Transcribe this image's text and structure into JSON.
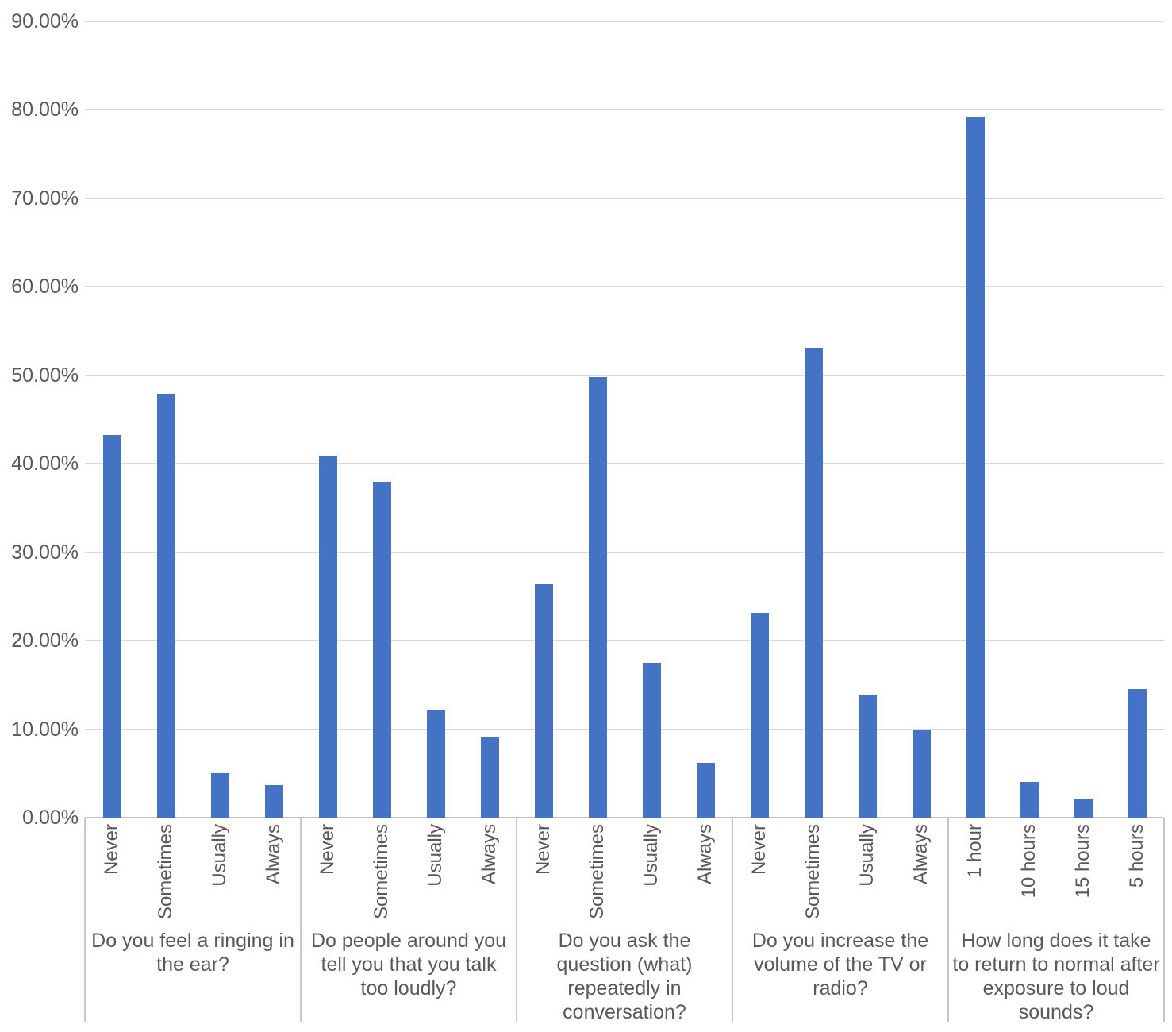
{
  "chart_data": {
    "type": "bar",
    "title": "",
    "xlabel": "",
    "ylabel": "",
    "ylim": [
      0,
      90
    ],
    "y_tick_step": 10,
    "grid": true,
    "legend": "none",
    "bar_color": "#4472C4",
    "y_ticks": [
      {
        "value": 0,
        "label": "0.00%"
      },
      {
        "value": 10,
        "label": "10.00%"
      },
      {
        "value": 20,
        "label": "20.00%"
      },
      {
        "value": 30,
        "label": "30.00%"
      },
      {
        "value": 40,
        "label": "40.00%"
      },
      {
        "value": 50,
        "label": "50.00%"
      },
      {
        "value": 60,
        "label": "60.00%"
      },
      {
        "value": 70,
        "label": "70.00%"
      },
      {
        "value": 80,
        "label": "80.00%"
      },
      {
        "value": 90,
        "label": "90.00%"
      }
    ],
    "groups": [
      {
        "label": "Do you feel a ringing in the ear?",
        "categories": [
          "Never",
          "Sometimes",
          "Usually",
          "Always"
        ],
        "values": [
          43.2,
          47.9,
          5.0,
          3.7
        ]
      },
      {
        "label": "Do people around you tell you that you talk too loudly?",
        "categories": [
          "Never",
          "Sometimes",
          "Usually",
          "Always"
        ],
        "values": [
          40.9,
          37.9,
          12.1,
          9.1
        ]
      },
      {
        "label": "Do you ask the question (what) repeatedly in conversation?",
        "categories": [
          "Never",
          "Sometimes",
          "Usually",
          "Always"
        ],
        "values": [
          26.4,
          49.8,
          17.5,
          6.2
        ]
      },
      {
        "label": "Do you increase the volume of the TV or radio?",
        "categories": [
          "Never",
          "Sometimes",
          "Usually",
          "Always"
        ],
        "values": [
          23.1,
          53.0,
          13.8,
          10.0
        ]
      },
      {
        "label": "How long does it take to return to normal after exposure to loud sounds?",
        "categories": [
          "1 hour",
          "10 hours",
          "15 hours",
          "5 hours"
        ],
        "values": [
          79.2,
          4.0,
          2.1,
          14.5
        ]
      }
    ],
    "colors": {
      "bar": "#4472C4",
      "text": "#595959",
      "gridline": "#D9D9D9",
      "axis_line": "#C3C3C3",
      "separator": "#C8C8C8",
      "background": "#FFFFFF"
    }
  }
}
